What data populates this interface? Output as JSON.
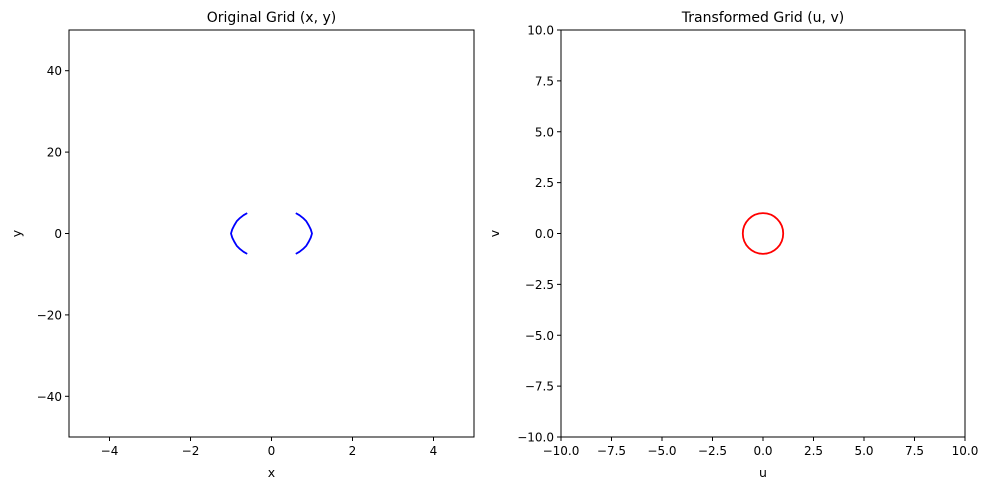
{
  "chart_data": [
    {
      "type": "line",
      "title": "Original Grid (x, y)",
      "xlabel": "x",
      "ylabel": "y",
      "xlim": [
        -5,
        5
      ],
      "ylim": [
        -50,
        50
      ],
      "xticks": [
        -4,
        -2,
        0,
        2,
        4
      ],
      "xtick_labels": [
        "−4",
        "−2",
        "0",
        "2",
        "4"
      ],
      "yticks": [
        -40,
        -20,
        0,
        20,
        40
      ],
      "ytick_labels": [
        "−40",
        "−20",
        "0",
        "20",
        "40"
      ],
      "grid": false,
      "series": [
        {
          "color": "#0000ff",
          "curves": [
            {
              "x": [
                -0.6,
                -0.69,
                -0.78,
                -0.86,
                -0.92,
                -0.97,
                -1.0,
                -0.97,
                -0.92,
                -0.86,
                -0.78,
                -0.69,
                -0.6
              ],
              "y": [
                5.0,
                4.5,
                3.8,
                3.0,
                2.0,
                1.0,
                0.0,
                -1.0,
                -2.0,
                -3.0,
                -3.8,
                -4.5,
                -5.0
              ]
            },
            {
              "x": [
                0.6,
                0.69,
                0.78,
                0.86,
                0.92,
                0.97,
                1.0,
                0.97,
                0.92,
                0.86,
                0.78,
                0.69,
                0.6
              ],
              "y": [
                5.0,
                4.5,
                3.8,
                3.0,
                2.0,
                1.0,
                0.0,
                -1.0,
                -2.0,
                -3.0,
                -3.8,
                -4.5,
                -5.0
              ]
            }
          ]
        }
      ]
    },
    {
      "type": "line",
      "title": "Transformed Grid (u, v)",
      "xlabel": "u",
      "ylabel": "v",
      "xlim": [
        -10,
        10
      ],
      "ylim": [
        -10,
        10
      ],
      "xticks": [
        -10,
        -7.5,
        -5,
        -2.5,
        0,
        2.5,
        5,
        7.5,
        10
      ],
      "xtick_labels": [
        "−10.0",
        "−7.5",
        "−5.0",
        "−2.5",
        "0.0",
        "2.5",
        "5.0",
        "7.5",
        "10.0"
      ],
      "yticks": [
        -10,
        -7.5,
        -5,
        -2.5,
        0,
        2.5,
        5,
        7.5,
        10
      ],
      "ytick_labels": [
        "−10.0",
        "−7.5",
        "−5.0",
        "−2.5",
        "0.0",
        "2.5",
        "5.0",
        "7.5",
        "10.0"
      ],
      "grid": false,
      "series": [
        {
          "color": "#ff0000",
          "circle": {
            "cx": 0,
            "cy": 0,
            "r": 1
          }
        }
      ]
    }
  ]
}
